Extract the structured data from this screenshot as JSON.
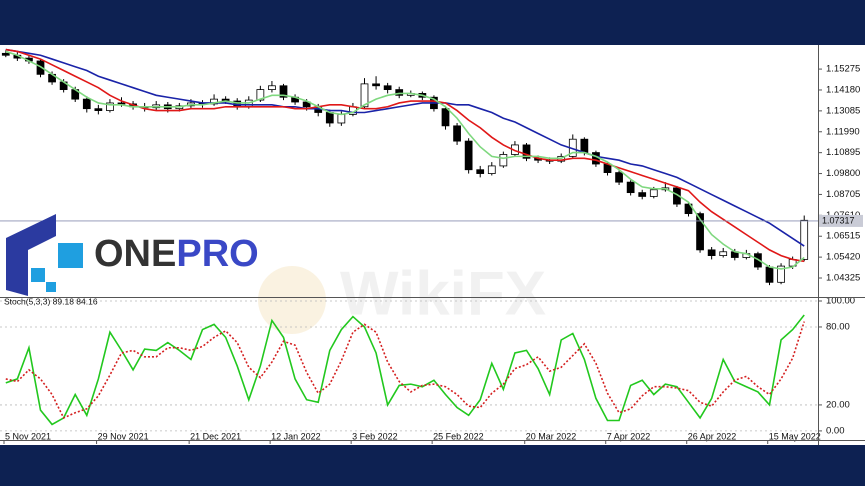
{
  "chart_data": [
    {
      "type": "candlestick",
      "categories": [
        "5 Nov 2021",
        null,
        null,
        null,
        null,
        null,
        null,
        null,
        "29 Nov 2021",
        null,
        null,
        null,
        null,
        null,
        null,
        null,
        "21 Dec 2021",
        null,
        null,
        null,
        null,
        null,
        null,
        "12 Jan 2022",
        null,
        null,
        null,
        null,
        null,
        null,
        "3 Feb 2022",
        null,
        null,
        null,
        null,
        null,
        null,
        "25 Feb 2022",
        null,
        null,
        null,
        null,
        null,
        null,
        null,
        "20 Mar 2022",
        null,
        null,
        null,
        null,
        null,
        null,
        "7 Apr 2022",
        null,
        null,
        null,
        null,
        null,
        null,
        "26 Apr 2022",
        null,
        null,
        null,
        null,
        null,
        null,
        "15 May 2022",
        null,
        null,
        null
      ],
      "candles": [
        [
          1.161,
          1.1625,
          1.159,
          1.16
        ],
        [
          1.16,
          1.1615,
          1.157,
          1.1585
        ],
        [
          1.1585,
          1.16,
          1.1555,
          1.157
        ],
        [
          1.157,
          1.158,
          1.1485,
          1.15
        ],
        [
          1.15,
          1.1515,
          1.1445,
          1.146
        ],
        [
          1.146,
          1.1475,
          1.1405,
          1.142
        ],
        [
          1.142,
          1.1435,
          1.1355,
          1.137
        ],
        [
          1.137,
          1.1385,
          1.13,
          1.132
        ],
        [
          1.132,
          1.134,
          1.129,
          1.131
        ],
        [
          1.131,
          1.137,
          1.13,
          1.135
        ],
        [
          1.135,
          1.138,
          1.133,
          1.1345
        ],
        [
          1.1345,
          1.136,
          1.1315,
          1.133
        ],
        [
          1.133,
          1.135,
          1.1305,
          1.1325
        ],
        [
          1.1325,
          1.136,
          1.131,
          1.134
        ],
        [
          1.134,
          1.1355,
          1.13,
          1.132
        ],
        [
          1.132,
          1.135,
          1.1305,
          1.1335
        ],
        [
          1.1335,
          1.137,
          1.132,
          1.135
        ],
        [
          1.135,
          1.1365,
          1.1325,
          1.1345
        ],
        [
          1.1345,
          1.1395,
          1.1335,
          1.137
        ],
        [
          1.137,
          1.1385,
          1.1345,
          1.136
        ],
        [
          1.136,
          1.1375,
          1.1315,
          1.133
        ],
        [
          1.133,
          1.1385,
          1.132,
          1.1365
        ],
        [
          1.1365,
          1.144,
          1.1355,
          1.142
        ],
        [
          1.142,
          1.1465,
          1.1405,
          1.144
        ],
        [
          1.144,
          1.145,
          1.1365,
          1.138
        ],
        [
          1.138,
          1.1395,
          1.134,
          1.1355
        ],
        [
          1.1355,
          1.137,
          1.131,
          1.133
        ],
        [
          1.133,
          1.1345,
          1.128,
          1.13
        ],
        [
          1.13,
          1.1315,
          1.1225,
          1.1245
        ],
        [
          1.1245,
          1.1305,
          1.123,
          1.129
        ],
        [
          1.129,
          1.135,
          1.128,
          1.133
        ],
        [
          1.133,
          1.148,
          1.132,
          1.145
        ],
        [
          1.145,
          1.149,
          1.142,
          1.144
        ],
        [
          1.144,
          1.1455,
          1.14,
          1.142
        ],
        [
          1.142,
          1.1435,
          1.1375,
          1.139
        ],
        [
          1.139,
          1.1415,
          1.138,
          1.14
        ],
        [
          1.14,
          1.141,
          1.1365,
          1.138
        ],
        [
          1.138,
          1.139,
          1.1305,
          1.132
        ],
        [
          1.132,
          1.1335,
          1.121,
          1.123
        ],
        [
          1.123,
          1.1245,
          1.113,
          1.115
        ],
        [
          1.115,
          1.1165,
          1.098,
          1.1
        ],
        [
          1.1,
          1.102,
          1.096,
          1.098
        ],
        [
          1.098,
          1.104,
          1.097,
          1.102
        ],
        [
          1.102,
          1.1095,
          1.101,
          1.108
        ],
        [
          1.108,
          1.115,
          1.107,
          1.113
        ],
        [
          1.113,
          1.114,
          1.1045,
          1.106
        ],
        [
          1.106,
          1.1075,
          1.1035,
          1.105
        ],
        [
          1.105,
          1.1065,
          1.103,
          1.1045
        ],
        [
          1.1045,
          1.1085,
          1.1035,
          1.107
        ],
        [
          1.107,
          1.1185,
          1.106,
          1.116
        ],
        [
          1.116,
          1.117,
          1.1075,
          1.109
        ],
        [
          1.109,
          1.11,
          1.1015,
          1.103
        ],
        [
          1.103,
          1.104,
          1.097,
          1.0985
        ],
        [
          1.0985,
          1.0995,
          1.092,
          1.0935
        ],
        [
          1.0935,
          1.0945,
          1.0865,
          1.088
        ],
        [
          1.088,
          1.0895,
          1.0845,
          1.086
        ],
        [
          1.086,
          1.091,
          1.085,
          1.0895
        ],
        [
          1.0895,
          1.0935,
          1.0885,
          1.0905
        ],
        [
          1.0905,
          1.0915,
          1.0805,
          1.082
        ],
        [
          1.082,
          1.083,
          1.0755,
          1.077
        ],
        [
          1.077,
          1.078,
          1.0565,
          1.058
        ],
        [
          1.058,
          1.0595,
          1.053,
          1.055
        ],
        [
          1.055,
          1.059,
          1.054,
          1.057
        ],
        [
          1.057,
          1.0585,
          1.0525,
          1.054
        ],
        [
          1.054,
          1.058,
          1.053,
          1.056
        ],
        [
          1.056,
          1.057,
          1.0475,
          1.049
        ],
        [
          1.049,
          1.05,
          1.0395,
          1.041
        ],
        [
          1.041,
          1.051,
          1.04,
          1.0495
        ],
        [
          1.0495,
          1.0545,
          1.048,
          1.053
        ],
        [
          1.053,
          1.076,
          1.052,
          1.0735
        ]
      ],
      "up_color": "#ffffff",
      "down_color": "#000000",
      "series": [
        {
          "color": "#1a23a8",
          "values": [
            1.163,
            1.162,
            1.161,
            1.16,
            1.158,
            1.156,
            1.154,
            1.152,
            1.149,
            1.147,
            1.145,
            1.143,
            1.141,
            1.139,
            1.138,
            1.137,
            1.136,
            1.135,
            1.135,
            1.135,
            1.134,
            1.134,
            1.134,
            1.134,
            1.133,
            1.133,
            1.132,
            1.132,
            1.131,
            1.131,
            1.13,
            1.13,
            1.131,
            1.132,
            1.133,
            1.134,
            1.135,
            1.135,
            1.135,
            1.134,
            1.134,
            1.132,
            1.13,
            1.127,
            1.125,
            1.122,
            1.119,
            1.116,
            1.113,
            1.111,
            1.109,
            1.107,
            1.106,
            1.105,
            1.103,
            1.102,
            1.1,
            1.098,
            1.096,
            1.093,
            1.09,
            1.087,
            1.084,
            1.081,
            1.078,
            1.075,
            1.072,
            1.068,
            1.064,
            1.06
          ]
        },
        {
          "color": "#e01818",
          "values": [
            1.163,
            1.162,
            1.16,
            1.158,
            1.155,
            1.152,
            1.149,
            1.146,
            1.143,
            1.139,
            1.136,
            1.134,
            1.132,
            1.131,
            1.131,
            1.131,
            1.132,
            1.132,
            1.132,
            1.133,
            1.133,
            1.133,
            1.133,
            1.133,
            1.133,
            1.132,
            1.132,
            1.133,
            1.134,
            1.134,
            1.133,
            1.132,
            1.132,
            1.133,
            1.135,
            1.136,
            1.136,
            1.136,
            1.135,
            1.131,
            1.126,
            1.122,
            1.117,
            1.113,
            1.11,
            1.108,
            1.106,
            1.105,
            1.105,
            1.106,
            1.106,
            1.105,
            1.103,
            1.101,
            1.099,
            1.097,
            1.095,
            1.093,
            1.091,
            1.089,
            1.083,
            1.078,
            1.074,
            1.07,
            1.066,
            1.062,
            1.058,
            1.055,
            1.053,
            1.052
          ]
        },
        {
          "color": "#7fd87f",
          "values": [
            1.162,
            1.16,
            1.157,
            1.154,
            1.15,
            1.146,
            1.142,
            1.138,
            1.135,
            1.134,
            1.134,
            1.133,
            1.133,
            1.133,
            1.133,
            1.133,
            1.134,
            1.134,
            1.135,
            1.136,
            1.135,
            1.135,
            1.137,
            1.139,
            1.139,
            1.138,
            1.136,
            1.133,
            1.13,
            1.129,
            1.13,
            1.134,
            1.137,
            1.139,
            1.14,
            1.14,
            1.139,
            1.137,
            1.133,
            1.127,
            1.119,
            1.112,
            1.107,
            1.106,
            1.107,
            1.107,
            1.107,
            1.106,
            1.106,
            1.109,
            1.109,
            1.107,
            1.104,
            1.1,
            1.095,
            1.091,
            1.09,
            1.09,
            1.087,
            1.083,
            1.074,
            1.066,
            1.061,
            1.057,
            1.056,
            1.053,
            1.049,
            1.048,
            1.049,
            1.054
          ]
        }
      ],
      "current_price": 1.07317,
      "ylim": [
        1.0333,
        1.1638
      ],
      "yticks": [
        1.15275,
        {
          "value": 1.1418,
          "label": "1.14180"
        },
        1.13085,
        {
          "value": 1.1199,
          "label": "1.11990"
        },
        1.10895,
        {
          "value": 1.098,
          "label": "1.09800"
        },
        1.08705,
        {
          "value": 1.0761,
          "label": "1.07610"
        },
        1.06515,
        {
          "value": 1.0542,
          "label": "1.05420"
        },
        1.04325
      ]
    },
    {
      "type": "line",
      "title": "Stoch(5,3,3) 89.18 84.16",
      "series": [
        {
          "color": "#22c81e",
          "style": "solid",
          "values": [
            37,
            40,
            64,
            16,
            5,
            10,
            28,
            12,
            40,
            76,
            62,
            47,
            63,
            62,
            68,
            62,
            55,
            78,
            82,
            72,
            50,
            24,
            50,
            85,
            72,
            40,
            24,
            22,
            62,
            78,
            88,
            80,
            60,
            20,
            35,
            36,
            34,
            39,
            28,
            18,
            12,
            24,
            52,
            32,
            60,
            62,
            48,
            28,
            70,
            75,
            55,
            25,
            8,
            8,
            35,
            39,
            28,
            36,
            34,
            22,
            10,
            25,
            55,
            38,
            34,
            30,
            20,
            70,
            78,
            89.18
          ]
        },
        {
          "color": "#d42020",
          "style": "dotted",
          "values": [
            40,
            38,
            47,
            40,
            28,
            10,
            14,
            17,
            27,
            43,
            60,
            62,
            57,
            57,
            64,
            64,
            62,
            65,
            72,
            77,
            68,
            49,
            41,
            53,
            69,
            66,
            45,
            29,
            36,
            54,
            76,
            82,
            76,
            53,
            38,
            30,
            35,
            36,
            34,
            28,
            19,
            18,
            29,
            36,
            48,
            51,
            57,
            46,
            49,
            58,
            67,
            52,
            29,
            14,
            17,
            27,
            34,
            34,
            33,
            31,
            22,
            19,
            30,
            39,
            42,
            34,
            28,
            40,
            56,
            84.16
          ]
        }
      ],
      "ylim": [
        -7,
        102.3
      ],
      "yticks": [
        {
          "value": 0,
          "label": "0.00"
        },
        {
          "value": 20,
          "label": "20.00"
        },
        {
          "value": 80,
          "label": "80.00"
        },
        {
          "value": 100,
          "label": "100.00"
        }
      ]
    }
  ],
  "logo": [
    "ONE",
    "PRO"
  ],
  "watermark": "WikiFX"
}
